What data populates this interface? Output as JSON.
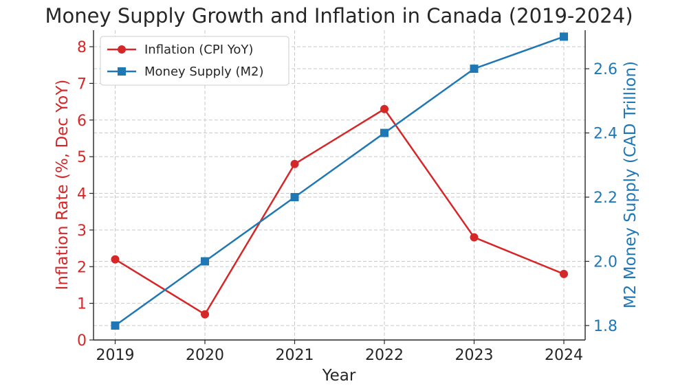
{
  "colors": {
    "inflation": "#d62728",
    "money_supply": "#1f77b4",
    "axis": "#262626",
    "grid": "#c9c9c9"
  },
  "chart_data": {
    "type": "line",
    "title": "Money Supply Growth and Inflation in Canada (2019-2024)",
    "xlabel": "Year",
    "ylabel_left": "Inflation Rate (%, Dec YoY)",
    "ylabel_right": "M2 Money Supply (CAD Trillion)",
    "categories": [
      "2019",
      "2020",
      "2021",
      "2022",
      "2023",
      "2024"
    ],
    "x_ticks": [
      "2019",
      "2020",
      "2021",
      "2022",
      "2023",
      "2024"
    ],
    "y_left_ticks": [
      "0",
      "1",
      "2",
      "3",
      "4",
      "5",
      "6",
      "7",
      "8"
    ],
    "y_right_ticks": [
      "1.8",
      "2.0",
      "2.2",
      "2.4",
      "2.6"
    ],
    "ylim_left": [
      0,
      8.45
    ],
    "ylim_right": [
      1.755,
      2.72
    ],
    "grid": true,
    "legend_position": "top-left",
    "series": [
      {
        "name": "Inflation (CPI YoY)",
        "axis": "left",
        "marker": "circle",
        "values": [
          2.2,
          0.7,
          4.8,
          6.3,
          2.8,
          1.8
        ]
      },
      {
        "name": "Money Supply (M2)",
        "axis": "right",
        "marker": "square",
        "values": [
          1.8,
          2.0,
          2.2,
          2.4,
          2.6,
          2.7
        ]
      }
    ]
  }
}
